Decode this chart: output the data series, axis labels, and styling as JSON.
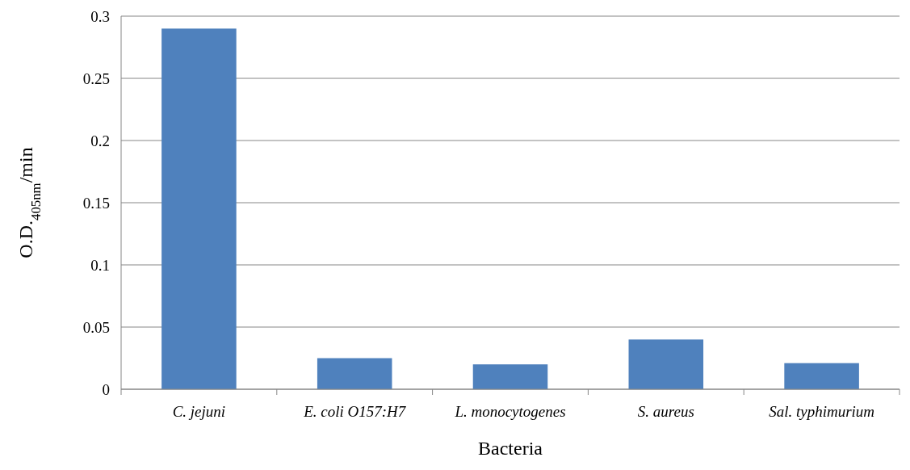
{
  "chart_data": {
    "type": "bar",
    "xlabel": "Bacteria",
    "ylabel": "O.D.$_{405nm}$/min",
    "categories": [
      "C. jejuni",
      "E. coli O157:H7",
      "L. monocytogenes",
      "S. aureus",
      "Sal. typhimurium"
    ],
    "values": [
      0.29,
      0.025,
      0.02,
      0.04,
      0.021
    ],
    "color": "#4f81bd",
    "ylim": [
      0,
      0.3
    ],
    "yticks": [
      0,
      0.05,
      0.1,
      0.15,
      0.2,
      0.25,
      0.3
    ],
    "grid": "y"
  }
}
